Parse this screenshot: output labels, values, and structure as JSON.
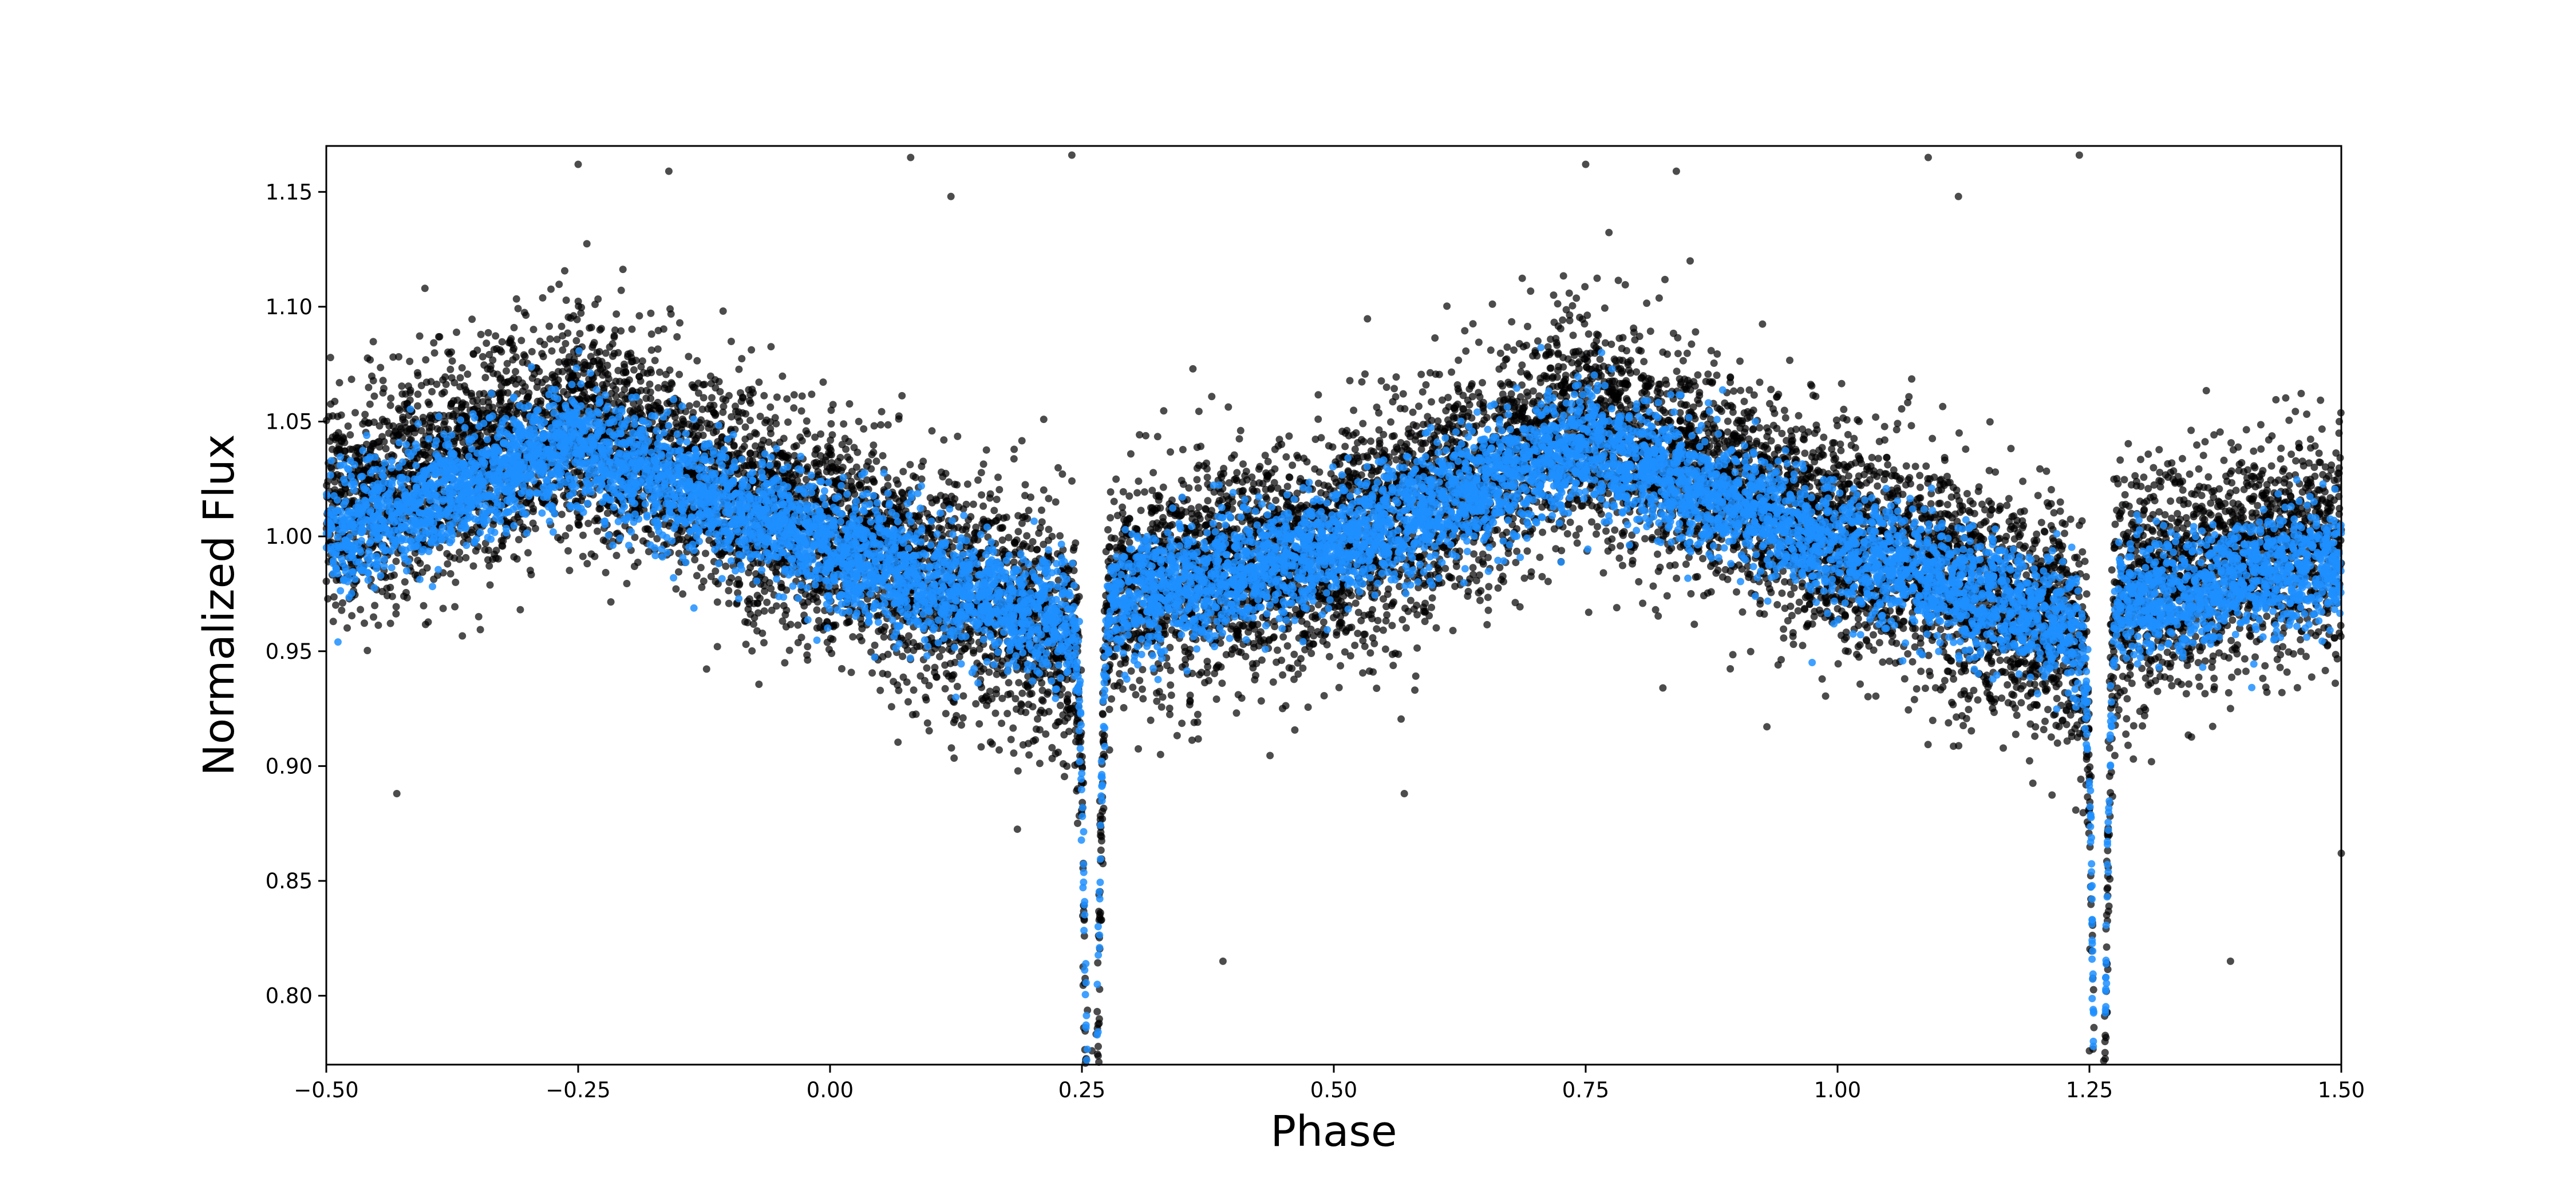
{
  "chart_data": {
    "type": "scatter",
    "title": "",
    "xlabel": "Phase",
    "ylabel": "Normalized Flux",
    "xlim": [
      -0.5,
      1.5
    ],
    "ylim": [
      0.77,
      1.17
    ],
    "grid": false,
    "legend": "none",
    "x_ticks": [
      "−0.50",
      "−0.25",
      "0.00",
      "0.25",
      "0.50",
      "0.75",
      "1.00",
      "1.25",
      "1.50"
    ],
    "y_ticks": [
      "0.80",
      "0.85",
      "0.90",
      "0.95",
      "1.00",
      "1.05",
      "1.10",
      "1.15"
    ],
    "eclipse_phases": [
      0.26,
      1.26
    ],
    "eclipse_minimum_flux": 0.8,
    "series": [
      {
        "color": "#000000",
        "role": "background points",
        "curve_x": [
          -0.5,
          -0.25,
          0.0,
          0.24,
          0.27,
          0.5,
          0.75,
          1.0,
          1.24,
          1.27,
          1.5
        ],
        "curve_y": [
          1.01,
          1.05,
          1.0,
          0.955,
          0.975,
          0.995,
          1.05,
          1.0,
          0.955,
          0.975,
          1.0
        ],
        "band_halfwidth": 0.04,
        "outliers": [
          {
            "x": -0.43,
            "y": 0.888
          },
          {
            "x": -0.25,
            "y": 1.162
          },
          {
            "x": -0.16,
            "y": 1.159
          },
          {
            "x": 0.08,
            "y": 1.165
          },
          {
            "x": 0.12,
            "y": 1.148
          },
          {
            "x": 0.24,
            "y": 1.166
          },
          {
            "x": 0.39,
            "y": 0.815
          },
          {
            "x": 0.75,
            "y": 1.162
          },
          {
            "x": 0.84,
            "y": 1.159
          },
          {
            "x": 1.09,
            "y": 1.165
          },
          {
            "x": 1.12,
            "y": 1.148
          },
          {
            "x": 1.24,
            "y": 1.166
          },
          {
            "x": 1.39,
            "y": 0.815
          },
          {
            "x": 0.26,
            "y": 0.776
          },
          {
            "x": 1.25,
            "y": 0.776
          },
          {
            "x": 0.57,
            "y": 0.888
          },
          {
            "x": 1.5,
            "y": 0.862
          }
        ]
      },
      {
        "color": "#1e8fff",
        "role": "binned points",
        "curve_x": [
          -0.5,
          -0.25,
          0.0,
          0.24,
          0.27,
          0.5,
          0.75,
          1.0,
          1.24,
          1.27,
          1.5
        ],
        "curve_y": [
          1.0,
          1.04,
          0.995,
          0.96,
          0.97,
          0.995,
          1.04,
          0.995,
          0.96,
          0.97,
          0.99
        ],
        "band_halfwidth": 0.022
      }
    ]
  }
}
